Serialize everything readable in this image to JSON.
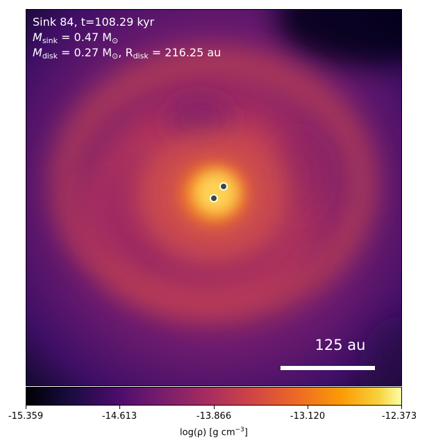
{
  "annotations": {
    "line1": "Sink 84, t=108.29 kyr",
    "line2_prefix": "M",
    "line2_sub": "sink",
    "line2_rest": " = 0.47 M",
    "line2_sun": "⊙",
    "line3_prefix": "M",
    "line3_sub": "disk",
    "line3_mid": " = 0.27 M",
    "line3_sun": "⊙",
    "line3_r": ", R",
    "line3_rsub": "disk",
    "line3_rest": " = 216.25 au"
  },
  "scale_bar": {
    "label": "125 au"
  },
  "colorbar": {
    "ticks": [
      "-15.359",
      "-14.613",
      "-13.866",
      "-13.120",
      "-12.373"
    ],
    "label_pre": "log(ρ) [g cm",
    "label_exp": "−3",
    "label_post": "]",
    "colormap": "inferno"
  },
  "sinks": {
    "count": 2,
    "marker_color": "#3a4a3a",
    "marker_edge": "#ffffff"
  },
  "colors": {
    "background_low": "#3b0f70",
    "mid": "#c8464f",
    "core": "#fbb32e",
    "peak": "#ffe680"
  }
}
